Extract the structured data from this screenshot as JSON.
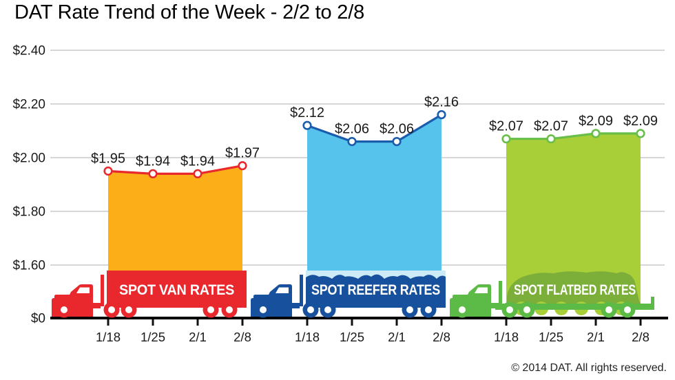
{
  "title": "DAT Rate Trend of the Week - 2/2 to 2/8",
  "footer": {
    "copyright": "© 2014 DAT. All rights reserved."
  },
  "chart_data": {
    "type": "area",
    "title": "DAT Rate Trend of the Week - 2/2 to 2/8",
    "x_labels": [
      "1/18",
      "1/25",
      "2/1",
      "2/8"
    ],
    "y_axis": {
      "ticks": [
        {
          "label": "$2.40",
          "value": 2.4
        },
        {
          "label": "$2.20",
          "value": 2.2
        },
        {
          "label": "$2.00",
          "value": 2.0
        },
        {
          "label": "$1.80",
          "value": 1.8
        },
        {
          "label": "$1.60",
          "value": 1.6
        },
        {
          "label": "$0",
          "value": 0
        }
      ],
      "axis_break_between": [
        "$0",
        "$1.60"
      ]
    },
    "grid": true,
    "legend_position": "labels-on-trucks",
    "series": [
      {
        "id": "spot-van-rates",
        "name": "SPOT VAN RATES",
        "truck_style": "van",
        "values": [
          1.95,
          1.94,
          1.94,
          1.97
        ],
        "point_labels": [
          "$1.95",
          "$1.94",
          "$1.94",
          "$1.97"
        ],
        "colors": {
          "fill": "#FBAE17",
          "line": "#E8282D",
          "truck": "#E8282D"
        }
      },
      {
        "id": "spot-reefer-rates",
        "name": "SPOT REEFER RATES",
        "truck_style": "reefer",
        "values": [
          2.12,
          2.06,
          2.06,
          2.16
        ],
        "point_labels": [
          "$2.12",
          "$2.06",
          "$2.06",
          "$2.16"
        ],
        "colors": {
          "fill": "#55C3EB",
          "line": "#1B5CAC",
          "truck": "#17519E",
          "ice": "#CDEBF7"
        }
      },
      {
        "id": "spot-flatbed-rates",
        "name": "SPOT FLATBED RATES",
        "truck_style": "flatbed",
        "values": [
          2.07,
          2.07,
          2.09,
          2.09
        ],
        "point_labels": [
          "$2.07",
          "$2.07",
          "$2.09",
          "$2.09"
        ],
        "colors": {
          "fill": "#A8CE38",
          "line": "#67BE48",
          "truck": "#5CBB46",
          "tarp": "#7CAE3A"
        }
      }
    ]
  }
}
